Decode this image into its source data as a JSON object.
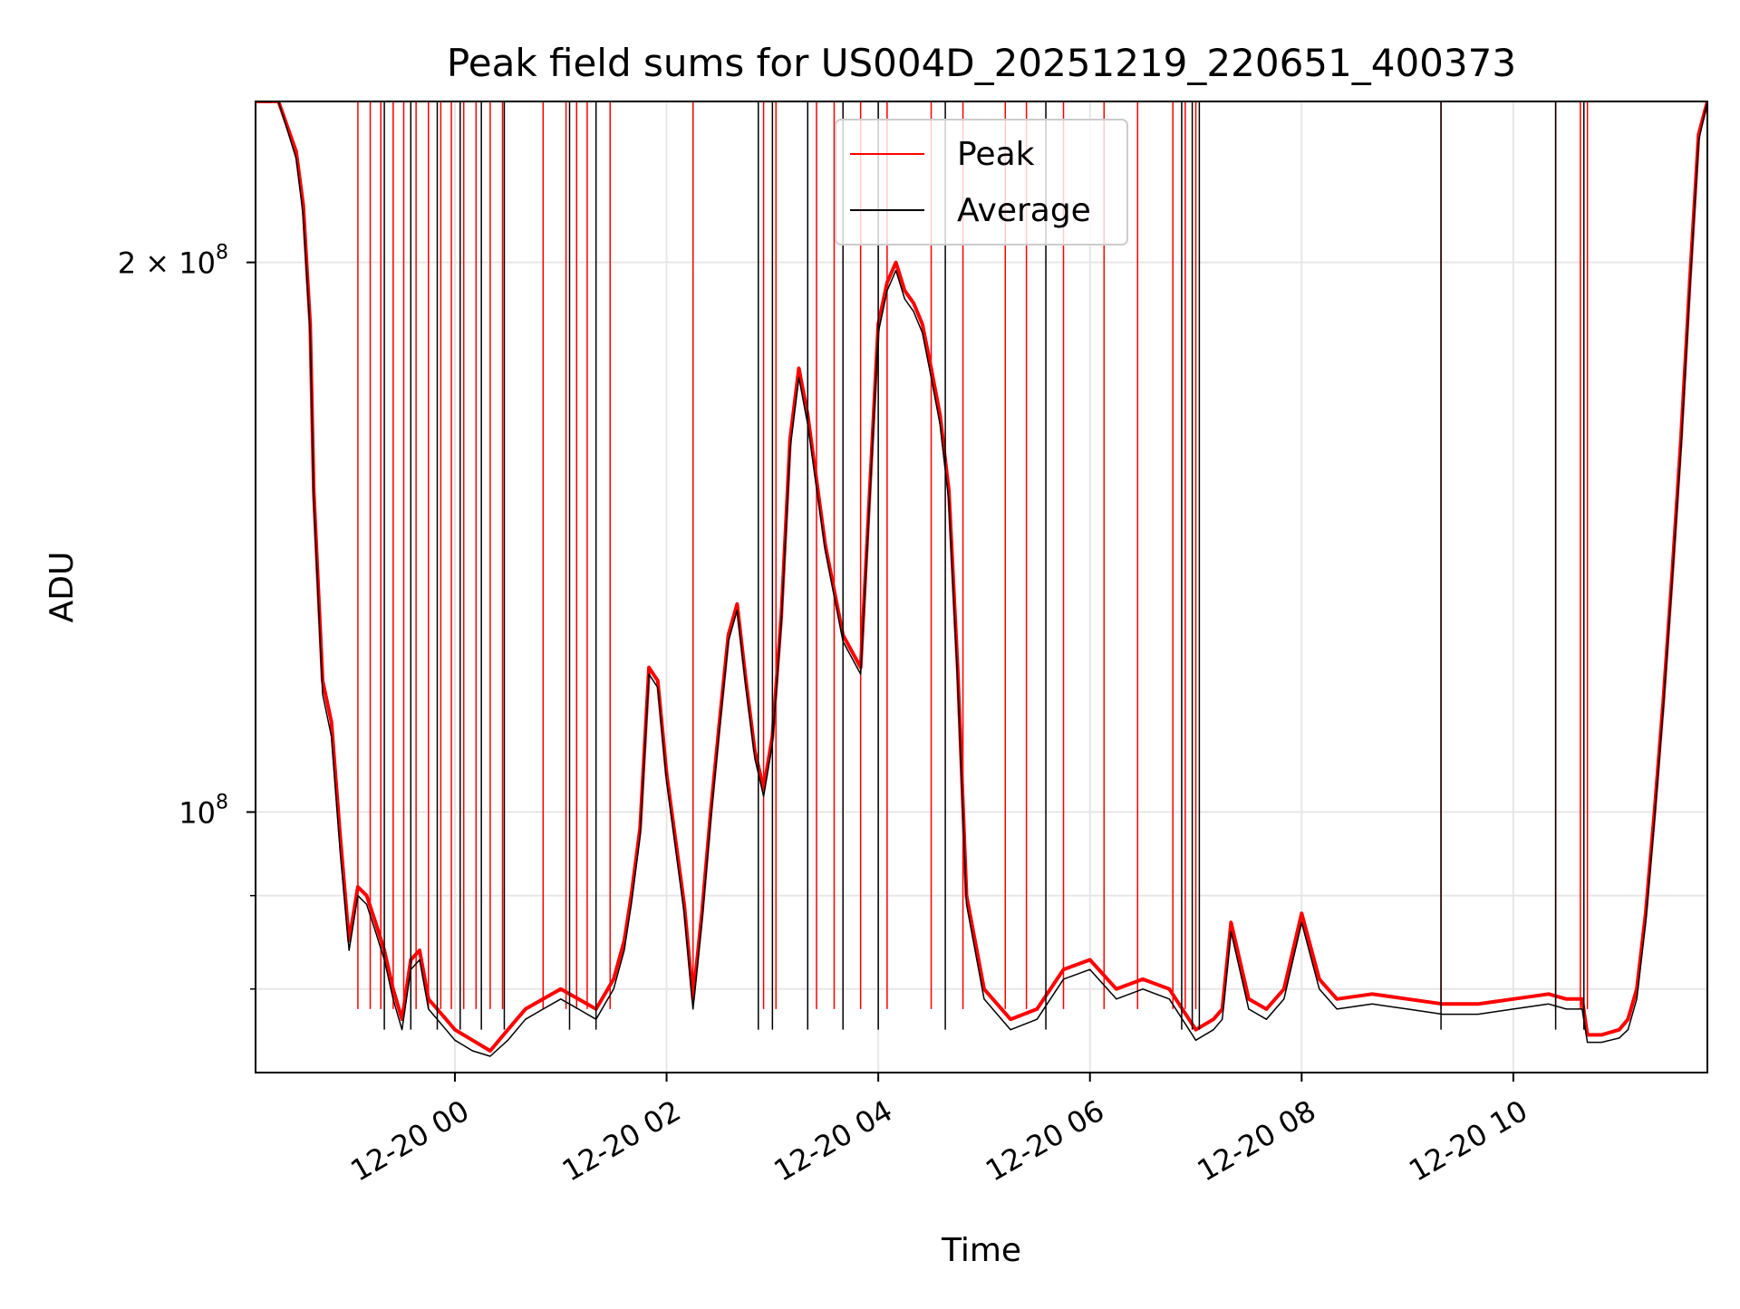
{
  "chart_data": {
    "type": "line",
    "title": "Peak field sums for US004D_20251219_220651_400373",
    "xlabel": "Time",
    "ylabel": "ADU",
    "yscale": "log",
    "xlim": [
      "2025-12-19 22:07",
      "2025-12-20 11:50"
    ],
    "ylim": [
      72000000,
      245000000
    ],
    "x_ticks": [
      {
        "value": "2025-12-20 00:00",
        "label": "12-20 00"
      },
      {
        "value": "2025-12-20 02:00",
        "label": "12-20 02"
      },
      {
        "value": "2025-12-20 04:00",
        "label": "12-20 04"
      },
      {
        "value": "2025-12-20 06:00",
        "label": "12-20 06"
      },
      {
        "value": "2025-12-20 08:00",
        "label": "12-20 08"
      },
      {
        "value": "2025-12-20 10:00",
        "label": "12-20 10"
      }
    ],
    "y_ticks": [
      {
        "value": 200000000,
        "label_mantissa": "2 × 10",
        "label_exp": "8"
      },
      {
        "value": 100000000,
        "label_mantissa": "10",
        "label_exp": "8"
      }
    ],
    "y_minor_ticks": [
      80000000,
      90000000
    ],
    "grid": true,
    "legend_position": "top-center",
    "series": [
      {
        "name": "Peak",
        "color": "#ff0000",
        "x": [
          "2025-12-19 22:07",
          "2025-12-19 22:20",
          "2025-12-19 22:30",
          "2025-12-19 22:34",
          "2025-12-19 22:38",
          "2025-12-19 22:40",
          "2025-12-19 22:45",
          "2025-12-19 22:50",
          "2025-12-19 22:55",
          "2025-12-19 23:00",
          "2025-12-19 23:05",
          "2025-12-19 23:10",
          "2025-12-19 23:15",
          "2025-12-19 23:20",
          "2025-12-19 23:25",
          "2025-12-19 23:30",
          "2025-12-19 23:35",
          "2025-12-19 23:40",
          "2025-12-19 23:45",
          "2025-12-19 23:50",
          "2025-12-19 23:55",
          "2025-12-20 00:00",
          "2025-12-20 00:10",
          "2025-12-20 00:20",
          "2025-12-20 00:30",
          "2025-12-20 00:40",
          "2025-12-20 00:50",
          "2025-12-20 01:00",
          "2025-12-20 01:10",
          "2025-12-20 01:20",
          "2025-12-20 01:30",
          "2025-12-20 01:36",
          "2025-12-20 01:40",
          "2025-12-20 01:45",
          "2025-12-20 01:50",
          "2025-12-20 01:55",
          "2025-12-20 02:00",
          "2025-12-20 02:10",
          "2025-12-20 02:15",
          "2025-12-20 02:20",
          "2025-12-20 02:25",
          "2025-12-20 02:30",
          "2025-12-20 02:35",
          "2025-12-20 02:40",
          "2025-12-20 02:45",
          "2025-12-20 02:50",
          "2025-12-20 02:55",
          "2025-12-20 03:00",
          "2025-12-20 03:05",
          "2025-12-20 03:10",
          "2025-12-20 03:15",
          "2025-12-20 03:20",
          "2025-12-20 03:30",
          "2025-12-20 03:40",
          "2025-12-20 03:50",
          "2025-12-20 04:00",
          "2025-12-20 04:05",
          "2025-12-20 04:10",
          "2025-12-20 04:15",
          "2025-12-20 04:20",
          "2025-12-20 04:25",
          "2025-12-20 04:30",
          "2025-12-20 04:35",
          "2025-12-20 04:40",
          "2025-12-20 04:45",
          "2025-12-20 04:50",
          "2025-12-20 05:00",
          "2025-12-20 05:15",
          "2025-12-20 05:30",
          "2025-12-20 05:45",
          "2025-12-20 06:00",
          "2025-12-20 06:15",
          "2025-12-20 06:30",
          "2025-12-20 06:45",
          "2025-12-20 07:00",
          "2025-12-20 07:10",
          "2025-12-20 07:15",
          "2025-12-20 07:20",
          "2025-12-20 07:30",
          "2025-12-20 07:40",
          "2025-12-20 07:50",
          "2025-12-20 08:00",
          "2025-12-20 08:10",
          "2025-12-20 08:20",
          "2025-12-20 08:40",
          "2025-12-20 09:00",
          "2025-12-20 09:20",
          "2025-12-20 09:40",
          "2025-12-20 10:00",
          "2025-12-20 10:20",
          "2025-12-20 10:30",
          "2025-12-20 10:39",
          "2025-12-20 10:42",
          "2025-12-20 10:50",
          "2025-12-20 11:00",
          "2025-12-20 11:05",
          "2025-12-20 11:10",
          "2025-12-20 11:15",
          "2025-12-20 11:20",
          "2025-12-20 11:25",
          "2025-12-20 11:30",
          "2025-12-20 11:35",
          "2025-12-20 11:40",
          "2025-12-20 11:45",
          "2025-12-20 11:50"
        ],
        "y": [
          245000000,
          245000000,
          230000000,
          215000000,
          185000000,
          150000000,
          118000000,
          112000000,
          97000000,
          85000000,
          91000000,
          90000000,
          87000000,
          84000000,
          80000000,
          77000000,
          83000000,
          84000000,
          79000000,
          78000000,
          77000000,
          76000000,
          75000000,
          74000000,
          76000000,
          78000000,
          79000000,
          80000000,
          79000000,
          78000000,
          81000000,
          85000000,
          90000000,
          98000000,
          120000000,
          118000000,
          105000000,
          89000000,
          79000000,
          88000000,
          100000000,
          112000000,
          125000000,
          130000000,
          118000000,
          108000000,
          103000000,
          110000000,
          128000000,
          160000000,
          175000000,
          165000000,
          140000000,
          125000000,
          120000000,
          185000000,
          195000000,
          200000000,
          193000000,
          190000000,
          185000000,
          175000000,
          165000000,
          150000000,
          120000000,
          90000000,
          80000000,
          77000000,
          78000000,
          82000000,
          83000000,
          80000000,
          81000000,
          80000000,
          76000000,
          77000000,
          78000000,
          87000000,
          79000000,
          78000000,
          80000000,
          88000000,
          81000000,
          79000000,
          79500000,
          79000000,
          78500000,
          78500000,
          79000000,
          79500000,
          79000000,
          79000000,
          75500000,
          75500000,
          76000000,
          77000000,
          80000000,
          88000000,
          100000000,
          115000000,
          135000000,
          160000000,
          195000000,
          235000000,
          245000000
        ]
      },
      {
        "name": "Average",
        "color": "#000000",
        "x": [
          "2025-12-19 22:07",
          "2025-12-19 22:20",
          "2025-12-19 22:30",
          "2025-12-19 22:34",
          "2025-12-19 22:38",
          "2025-12-19 22:40",
          "2025-12-19 22:45",
          "2025-12-19 22:50",
          "2025-12-19 22:55",
          "2025-12-19 23:00",
          "2025-12-19 23:05",
          "2025-12-19 23:10",
          "2025-12-19 23:15",
          "2025-12-19 23:20",
          "2025-12-19 23:25",
          "2025-12-19 23:30",
          "2025-12-19 23:35",
          "2025-12-19 23:40",
          "2025-12-19 23:45",
          "2025-12-19 23:50",
          "2025-12-19 23:55",
          "2025-12-20 00:00",
          "2025-12-20 00:10",
          "2025-12-20 00:20",
          "2025-12-20 00:30",
          "2025-12-20 00:40",
          "2025-12-20 00:50",
          "2025-12-20 01:00",
          "2025-12-20 01:10",
          "2025-12-20 01:20",
          "2025-12-20 01:30",
          "2025-12-20 01:36",
          "2025-12-20 01:40",
          "2025-12-20 01:45",
          "2025-12-20 01:50",
          "2025-12-20 01:55",
          "2025-12-20 02:00",
          "2025-12-20 02:10",
          "2025-12-20 02:15",
          "2025-12-20 02:20",
          "2025-12-20 02:25",
          "2025-12-20 02:30",
          "2025-12-20 02:35",
          "2025-12-20 02:40",
          "2025-12-20 02:45",
          "2025-12-20 02:50",
          "2025-12-20 02:55",
          "2025-12-20 03:00",
          "2025-12-20 03:05",
          "2025-12-20 03:10",
          "2025-12-20 03:15",
          "2025-12-20 03:20",
          "2025-12-20 03:30",
          "2025-12-20 03:40",
          "2025-12-20 03:50",
          "2025-12-20 04:00",
          "2025-12-20 04:05",
          "2025-12-20 04:10",
          "2025-12-20 04:15",
          "2025-12-20 04:20",
          "2025-12-20 04:25",
          "2025-12-20 04:30",
          "2025-12-20 04:35",
          "2025-12-20 04:40",
          "2025-12-20 04:45",
          "2025-12-20 04:50",
          "2025-12-20 05:00",
          "2025-12-20 05:15",
          "2025-12-20 05:30",
          "2025-12-20 05:45",
          "2025-12-20 06:00",
          "2025-12-20 06:15",
          "2025-12-20 06:30",
          "2025-12-20 06:45",
          "2025-12-20 07:00",
          "2025-12-20 07:10",
          "2025-12-20 07:15",
          "2025-12-20 07:20",
          "2025-12-20 07:30",
          "2025-12-20 07:40",
          "2025-12-20 07:50",
          "2025-12-20 08:00",
          "2025-12-20 08:10",
          "2025-12-20 08:20",
          "2025-12-20 08:40",
          "2025-12-20 09:00",
          "2025-12-20 09:20",
          "2025-12-20 09:40",
          "2025-12-20 10:00",
          "2025-12-20 10:20",
          "2025-12-20 10:30",
          "2025-12-20 10:39",
          "2025-12-20 10:42",
          "2025-12-20 10:50",
          "2025-12-20 11:00",
          "2025-12-20 11:05",
          "2025-12-20 11:10",
          "2025-12-20 11:15",
          "2025-12-20 11:20",
          "2025-12-20 11:25",
          "2025-12-20 11:30",
          "2025-12-20 11:35",
          "2025-12-20 11:40",
          "2025-12-20 11:45",
          "2025-12-20 11:50"
        ],
        "y": [
          245000000,
          245000000,
          228000000,
          212000000,
          183000000,
          148000000,
          116000000,
          110000000,
          95000000,
          84000000,
          90000000,
          89000000,
          86000000,
          83000000,
          79000000,
          76000000,
          82000000,
          83000000,
          78000000,
          77000000,
          76000000,
          75000000,
          74000000,
          73500000,
          75000000,
          77000000,
          78000000,
          79000000,
          78000000,
          77000000,
          80000000,
          84000000,
          89000000,
          97000000,
          119000000,
          117000000,
          104000000,
          88000000,
          78000000,
          87000000,
          99000000,
          111000000,
          124000000,
          129000000,
          117000000,
          107000000,
          102000000,
          109000000,
          127000000,
          158000000,
          173000000,
          163000000,
          139000000,
          124000000,
          119000000,
          183000000,
          193000000,
          198000000,
          191000000,
          188000000,
          183000000,
          173000000,
          163000000,
          148000000,
          118000000,
          89000000,
          79000000,
          76000000,
          77000000,
          81000000,
          82000000,
          79000000,
          80000000,
          79000000,
          75000000,
          76000000,
          77000000,
          86000000,
          78000000,
          77000000,
          79000000,
          87000000,
          80000000,
          78000000,
          78500000,
          78000000,
          77500000,
          77500000,
          78000000,
          78500000,
          78000000,
          78000000,
          74800000,
          74800000,
          75200000,
          76000000,
          79000000,
          87000000,
          99000000,
          114000000,
          134000000,
          158000000,
          193000000,
          233000000,
          245000000
        ]
      }
    ],
    "peak_spikes": [
      "2025-12-19 23:05",
      "2025-12-19 23:12",
      "2025-12-19 23:18",
      "2025-12-19 23:25",
      "2025-12-19 23:31",
      "2025-12-19 23:38",
      "2025-12-19 23:45",
      "2025-12-19 23:52",
      "2025-12-19 23:58",
      "2025-12-20 00:05",
      "2025-12-20 00:12",
      "2025-12-20 00:20",
      "2025-12-20 00:27",
      "2025-12-20 00:50",
      "2025-12-20 01:03",
      "2025-12-20 01:09",
      "2025-12-20 01:15",
      "2025-12-20 01:28",
      "2025-12-20 02:15",
      "2025-12-20 02:55",
      "2025-12-20 03:02",
      "2025-12-20 03:25",
      "2025-12-20 03:35",
      "2025-12-20 03:50",
      "2025-12-20 04:05",
      "2025-12-20 04:30",
      "2025-12-20 04:48",
      "2025-12-20 05:12",
      "2025-12-20 05:24",
      "2025-12-20 05:45",
      "2025-12-20 06:08",
      "2025-12-20 06:27",
      "2025-12-20 06:47",
      "2025-12-20 06:54",
      "2025-12-20 07:00",
      "2025-12-20 09:19",
      "2025-12-20 10:24",
      "2025-12-20 10:38",
      "2025-12-20 10:42"
    ],
    "average_spikes": [
      "2025-12-19 23:20",
      "2025-12-19 23:35",
      "2025-12-19 23:50",
      "2025-12-20 00:03",
      "2025-12-20 00:15",
      "2025-12-20 00:28",
      "2025-12-20 01:05",
      "2025-12-20 01:20",
      "2025-12-20 02:52",
      "2025-12-20 03:00",
      "2025-12-20 03:20",
      "2025-12-20 03:40",
      "2025-12-20 04:00",
      "2025-12-20 04:38",
      "2025-12-20 05:35",
      "2025-12-20 06:52",
      "2025-12-20 06:58",
      "2025-12-20 07:02",
      "2025-12-20 09:19",
      "2025-12-20 10:24",
      "2025-12-20 10:40"
    ]
  }
}
